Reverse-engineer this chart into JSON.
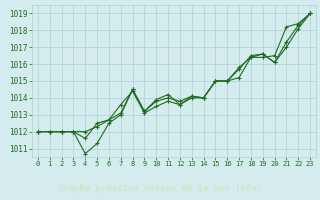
{
  "xlabel": "Graphe pression niveau de la mer (hPa)",
  "x": [
    0,
    1,
    2,
    3,
    4,
    5,
    6,
    7,
    8,
    9,
    10,
    11,
    12,
    13,
    14,
    15,
    16,
    17,
    18,
    19,
    20,
    21,
    22,
    23
  ],
  "line1": [
    1012.0,
    1012.0,
    1012.0,
    1012.0,
    1011.6,
    1012.5,
    1012.7,
    1013.6,
    1014.4,
    1013.1,
    1013.5,
    1013.8,
    1013.6,
    1014.0,
    1014.0,
    1015.0,
    1015.0,
    1015.8,
    1016.4,
    1016.6,
    1016.1,
    1017.3,
    1018.3,
    1019.0
  ],
  "line2": [
    1012.0,
    1012.0,
    1012.0,
    1012.0,
    1010.7,
    1011.3,
    1012.5,
    1013.0,
    1014.5,
    1013.2,
    1013.9,
    1014.2,
    1013.6,
    1014.1,
    1014.0,
    1015.0,
    1015.0,
    1015.7,
    1016.5,
    1016.6,
    1016.1,
    1017.0,
    1018.1,
    1019.0
  ],
  "line3": [
    1012.0,
    1012.0,
    1012.0,
    1012.0,
    1012.0,
    1012.3,
    1012.7,
    1013.1,
    1014.5,
    1013.2,
    1013.8,
    1014.0,
    1013.8,
    1014.1,
    1014.0,
    1015.0,
    1015.0,
    1015.2,
    1016.4,
    1016.4,
    1016.5,
    1018.2,
    1018.4,
    1019.0
  ],
  "ylim": [
    1010.5,
    1019.5
  ],
  "yticks": [
    1011,
    1012,
    1013,
    1014,
    1015,
    1016,
    1017,
    1018,
    1019
  ],
  "bg_color": "#d4ecee",
  "grid_color": "#aed0d3",
  "line_color": "#1f6b1f",
  "bottom_bar_color": "#2d6e2d",
  "bottom_text_color": "#c8e8c8",
  "tick_color": "#1f6b1f",
  "font_family": "monospace"
}
